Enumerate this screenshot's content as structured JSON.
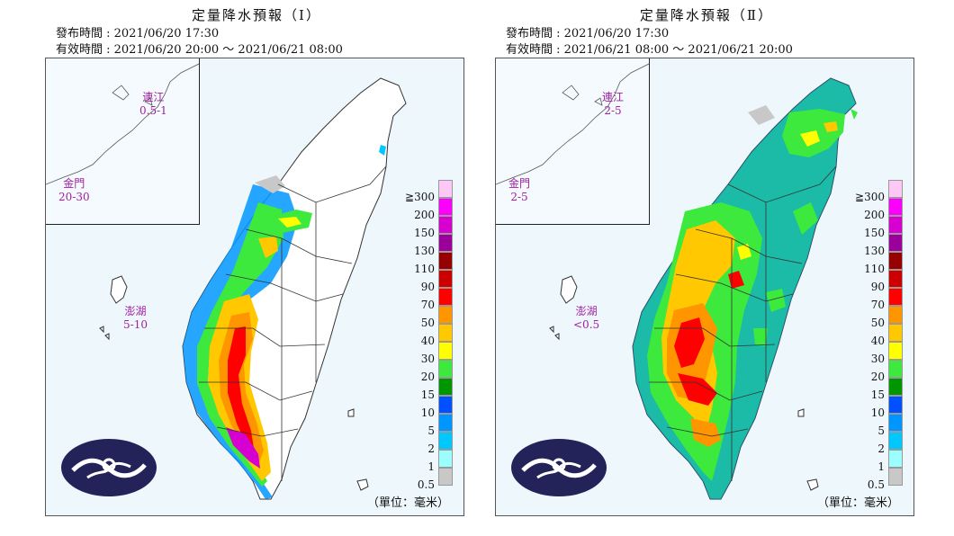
{
  "panels": [
    {
      "title": "定量降水預報（Ⅰ）",
      "issued": "發布時間 : 2021/06/20 17:30",
      "valid": "有效時間 : 2021/06/20 20:00 ～ 2021/06/21 08:00",
      "places": {
        "matsu": {
          "name": "連江",
          "value": "0.5-1"
        },
        "kinmen": {
          "name": "金門",
          "value": "20-30"
        },
        "penghu": {
          "name": "澎湖",
          "value": "5-10"
        }
      }
    },
    {
      "title": "定量降水預報（Ⅱ）",
      "issued": "發布時間 : 2021/06/20 17:30",
      "valid": "有效時間 : 2021/06/21 08:00 ～ 2021/06/21 20:00",
      "places": {
        "matsu": {
          "name": "連江",
          "value": "2-5"
        },
        "kinmen": {
          "name": "金門",
          "value": "2-5"
        },
        "penghu": {
          "name": "澎湖",
          "value": "<0.5"
        }
      }
    }
  ],
  "legend": {
    "labels": [
      "≧300",
      "200",
      "150",
      "130",
      "110",
      "90",
      "70",
      "50",
      "40",
      "30",
      "20",
      "15",
      "10",
      "5",
      "2",
      "1",
      "0.5"
    ],
    "colors": [
      "#fdc8f6",
      "#fb00fb",
      "#d600d0",
      "#9b009b",
      "#960000",
      "#cc0000",
      "#ff0000",
      "#ff9600",
      "#ffc800",
      "#ffff00",
      "#3ce93c",
      "#009600",
      "#0050ff",
      "#0096ff",
      "#00c8ff",
      "#9bffff",
      "#c8c8c8"
    ]
  },
  "unit_label": "（單位：毫米）"
}
